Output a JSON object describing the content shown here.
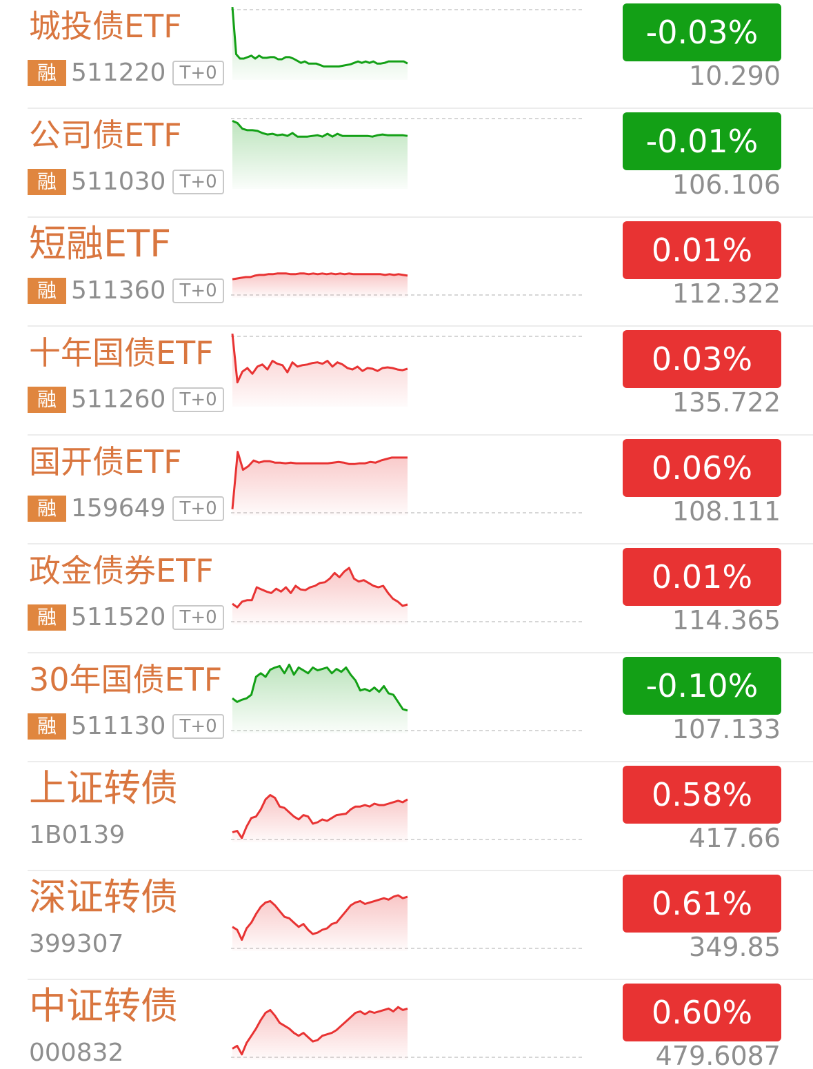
{
  "colors": {
    "up": "#e83333",
    "down": "#13a016",
    "name": "#d9763f",
    "badge": "#e0863f"
  },
  "badges": {
    "rong": "融",
    "t0": "T+0"
  },
  "items": [
    {
      "name": "城投债ETF",
      "code": "511220",
      "rong": true,
      "t0": true,
      "change": "-0.03%",
      "price": "10.290",
      "direction": "down",
      "spark": [
        98,
        32,
        26,
        26,
        28,
        30,
        26,
        30,
        27,
        27,
        28,
        28,
        25,
        25,
        28,
        28,
        26,
        23,
        20,
        22,
        19,
        19,
        19,
        17,
        15,
        15,
        15,
        15,
        15,
        16,
        17,
        18,
        20,
        22,
        20,
        22,
        20,
        22,
        19,
        19,
        20,
        22,
        22,
        22,
        22,
        22,
        19
      ]
    },
    {
      "name": "公司债ETF",
      "code": "511030",
      "rong": true,
      "t0": true,
      "change": "-0.01%",
      "price": "106.106",
      "direction": "down",
      "spark": [
        91,
        88,
        80,
        78,
        78,
        77,
        74,
        72,
        73,
        71,
        72,
        70,
        74,
        69,
        69,
        69,
        70,
        71,
        69,
        73,
        69,
        73,
        70,
        70,
        70,
        70,
        70,
        70,
        69,
        71,
        72,
        71,
        71,
        71,
        71,
        70
      ]
    },
    {
      "name": "短融ETF",
      "code": "511360",
      "rong": true,
      "t0": true,
      "change": "0.01%",
      "price": "112.322",
      "direction": "up",
      "spark": [
        22,
        23,
        24,
        25,
        25,
        27,
        28,
        28,
        29,
        29,
        30,
        30,
        30,
        29,
        29,
        30,
        30,
        29,
        30,
        29,
        30,
        29,
        30,
        29,
        30,
        29,
        30,
        29,
        29,
        29,
        29,
        29,
        29,
        29,
        28,
        29,
        28,
        29,
        28,
        27
      ]
    },
    {
      "name": "十年国债ETF",
      "code": "511260",
      "rong": true,
      "t0": true,
      "change": "0.03%",
      "price": "135.722",
      "direction": "up",
      "spark": [
        98,
        30,
        45,
        50,
        42,
        52,
        55,
        48,
        60,
        56,
        54,
        44,
        58,
        52,
        54,
        55,
        57,
        58,
        56,
        60,
        52,
        58,
        55,
        50,
        48,
        52,
        46,
        50,
        49,
        46,
        50,
        51,
        50,
        48,
        47,
        49
      ]
    },
    {
      "name": "国开债ETF",
      "code": "159649",
      "rong": true,
      "t0": true,
      "change": "0.06%",
      "price": "108.111",
      "direction": "up",
      "spark": [
        5,
        85,
        60,
        65,
        73,
        70,
        72,
        72,
        70,
        70,
        69,
        70,
        69,
        69,
        69,
        69,
        69,
        69,
        69,
        70,
        71,
        70,
        68,
        68,
        69,
        69,
        71,
        70,
        73,
        75,
        77,
        77,
        77,
        77
      ]
    },
    {
      "name": "政金债券ETF",
      "code": "511520",
      "rong": true,
      "t0": true,
      "change": "0.01%",
      "price": "114.365",
      "direction": "up",
      "spark": [
        25,
        20,
        28,
        30,
        30,
        48,
        45,
        42,
        40,
        46,
        42,
        48,
        40,
        50,
        45,
        44,
        48,
        50,
        54,
        55,
        60,
        68,
        62,
        70,
        75,
        60,
        56,
        58,
        54,
        50,
        48,
        50,
        40,
        32,
        28,
        22,
        24
      ]
    },
    {
      "name": "30年国债ETF",
      "code": "511130",
      "rong": true,
      "t0": true,
      "change": "-0.10%",
      "price": "107.133",
      "direction": "down",
      "spark": [
        45,
        40,
        43,
        45,
        50,
        75,
        80,
        75,
        85,
        88,
        90,
        80,
        92,
        78,
        88,
        84,
        80,
        88,
        84,
        86,
        88,
        80,
        86,
        82,
        88,
        78,
        70,
        56,
        58,
        55,
        60,
        54,
        62,
        52,
        50,
        40,
        30,
        28
      ]
    },
    {
      "name": "上证转债",
      "code": "1B0139",
      "rong": false,
      "t0": false,
      "change": "0.58%",
      "price": "417.66",
      "direction": "up",
      "spark": [
        10,
        12,
        2,
        18,
        30,
        32,
        42,
        56,
        62,
        58,
        46,
        44,
        38,
        32,
        28,
        34,
        32,
        22,
        24,
        28,
        26,
        30,
        34,
        35,
        36,
        42,
        46,
        46,
        48,
        46,
        50,
        48,
        48,
        50,
        52,
        54,
        52,
        56
      ]
    },
    {
      "name": "深证转债",
      "code": "399307",
      "rong": false,
      "t0": false,
      "change": "0.61%",
      "price": "349.85",
      "direction": "up",
      "spark": [
        30,
        26,
        12,
        28,
        36,
        48,
        58,
        64,
        66,
        60,
        52,
        44,
        42,
        36,
        30,
        34,
        26,
        20,
        22,
        26,
        28,
        34,
        36,
        44,
        52,
        60,
        64,
        66,
        62,
        64,
        66,
        68,
        70,
        68,
        72,
        74,
        70,
        72
      ]
    },
    {
      "name": "中证转债",
      "code": "000832",
      "rong": false,
      "t0": false,
      "change": "0.60%",
      "price": "479.6087",
      "direction": "up",
      "spark": [
        12,
        16,
        4,
        20,
        30,
        40,
        52,
        62,
        66,
        58,
        48,
        44,
        40,
        34,
        30,
        34,
        28,
        22,
        24,
        30,
        32,
        34,
        38,
        44,
        50,
        56,
        62,
        64,
        60,
        64,
        62,
        64,
        66,
        68,
        64,
        70,
        66,
        68
      ]
    }
  ]
}
